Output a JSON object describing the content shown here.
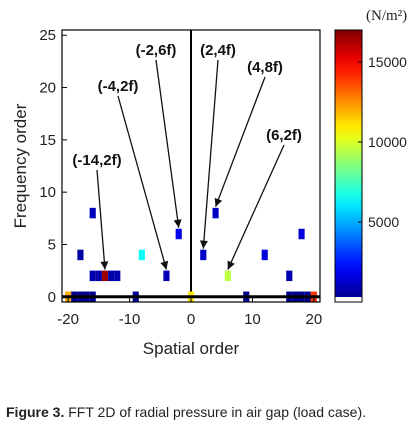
{
  "caption": {
    "label": "Figure 3.",
    "text": " FFT 2D of radial pressure in air gap (load case)."
  },
  "chart_data": {
    "type": "heatmap",
    "xlabel": "Spatial order",
    "ylabel": "Frequency order",
    "xlim": [
      -21,
      21
    ],
    "ylim": [
      -0.5,
      25.5
    ],
    "xticks": [
      -20,
      -10,
      0,
      10,
      20
    ],
    "yticks": [
      0,
      5,
      10,
      15,
      20,
      25
    ],
    "colorbar": {
      "unit": "(N/m²)",
      "ticks": [
        5000,
        10000,
        15000
      ],
      "range": [
        0,
        17000
      ],
      "colormap": "jet"
    },
    "cells": [
      {
        "x": -20,
        "y": 0,
        "value": 12000
      },
      {
        "x": -19,
        "y": 0,
        "value": 200
      },
      {
        "x": -18,
        "y": 0,
        "value": 300
      },
      {
        "x": -17,
        "y": 0,
        "value": 200
      },
      {
        "x": -16,
        "y": 0,
        "value": 300
      },
      {
        "x": -9,
        "y": 0,
        "value": 300
      },
      {
        "x": 0,
        "y": 0,
        "value": 11000
      },
      {
        "x": 9,
        "y": 0,
        "value": 300
      },
      {
        "x": 16,
        "y": 0,
        "value": 300
      },
      {
        "x": 17,
        "y": 0,
        "value": 200
      },
      {
        "x": 18,
        "y": 0,
        "value": 300
      },
      {
        "x": 19,
        "y": 0,
        "value": 200
      },
      {
        "x": 20,
        "y": 0,
        "value": 14000
      },
      {
        "x": -16,
        "y": 2,
        "value": 800
      },
      {
        "x": -15,
        "y": 2,
        "value": 700
      },
      {
        "x": -14,
        "y": 2,
        "value": 16500
      },
      {
        "x": -13,
        "y": 2,
        "value": 700
      },
      {
        "x": -12,
        "y": 2,
        "value": 800
      },
      {
        "x": -4,
        "y": 2,
        "value": 900
      },
      {
        "x": 6,
        "y": 2,
        "value": 9500
      },
      {
        "x": 16,
        "y": 2,
        "value": 800
      },
      {
        "x": -18,
        "y": 4,
        "value": 600
      },
      {
        "x": -8,
        "y": 4,
        "value": 6500
      },
      {
        "x": 2,
        "y": 4,
        "value": 1200
      },
      {
        "x": 12,
        "y": 4,
        "value": 1500
      },
      {
        "x": -2,
        "y": 6,
        "value": 1800
      },
      {
        "x": 18,
        "y": 6,
        "value": 1500
      },
      {
        "x": -16,
        "y": 8,
        "value": 1000
      },
      {
        "x": 4,
        "y": 8,
        "value": 1100
      }
    ],
    "annotations": [
      {
        "text": "(-14,2f)",
        "x": -14,
        "y": 2
      },
      {
        "text": "(-4,2f)",
        "x": -4,
        "y": 2
      },
      {
        "text": "(-2,6f)",
        "x": -2,
        "y": 6
      },
      {
        "text": "(2,4f)",
        "x": 2,
        "y": 4
      },
      {
        "text": "(4,8f)",
        "x": 4,
        "y": 8
      },
      {
        "text": "(6,2f)",
        "x": 6,
        "y": 2
      }
    ]
  }
}
